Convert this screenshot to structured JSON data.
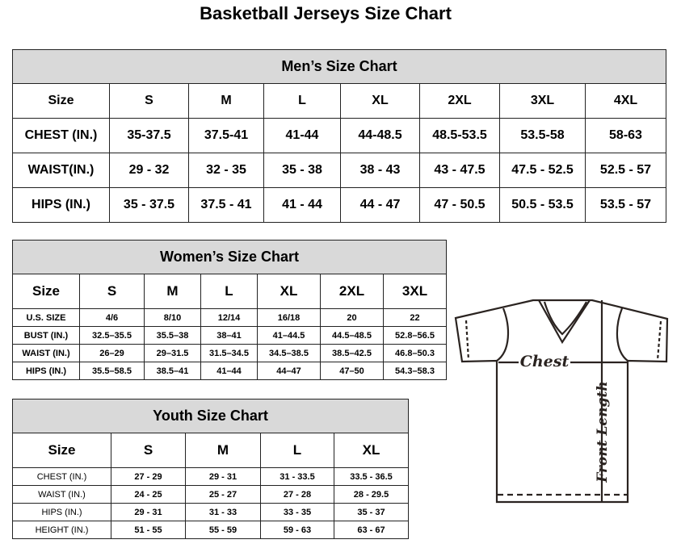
{
  "title": "Basketball Jerseys Size Chart",
  "men": {
    "caption": "Men’s Size Chart",
    "header": [
      "Size",
      "S",
      "M",
      "L",
      "XL",
      "2XL",
      "3XL",
      "4XL"
    ],
    "rows": [
      [
        "CHEST (IN.)",
        "35-37.5",
        "37.5-41",
        "41-44",
        "44-48.5",
        "48.5-53.5",
        "53.5-58",
        "58-63"
      ],
      [
        "WAIST(IN.)",
        "29 - 32",
        "32 - 35",
        "35 - 38",
        "38 - 43",
        "43 - 47.5",
        "47.5 - 52.5",
        "52.5 - 57"
      ],
      [
        "HIPS (IN.)",
        "35 - 37.5",
        "37.5 - 41",
        "41 - 44",
        "44 - 47",
        "47 - 50.5",
        "50.5 - 53.5",
        "53.5 - 57"
      ]
    ]
  },
  "women": {
    "caption": "Women’s Size Chart",
    "header": [
      "Size",
      "S",
      "M",
      "L",
      "XL",
      "2XL",
      "3XL"
    ],
    "rows": [
      [
        "U.S. SIZE",
        "4/6",
        "8/10",
        "12/14",
        "16/18",
        "20",
        "22"
      ],
      [
        "BUST (IN.)",
        "32.5–35.5",
        "35.5–38",
        "38–41",
        "41–44.5",
        "44.5–48.5",
        "52.8–56.5"
      ],
      [
        "WAIST (IN.)",
        "26–29",
        "29–31.5",
        "31.5–34.5",
        "34.5–38.5",
        "38.5–42.5",
        "46.8–50.3"
      ],
      [
        "HIPS (IN.)",
        "35.5–58.5",
        "38.5–41",
        "41–44",
        "44–47",
        "47–50",
        "54.3–58.3"
      ]
    ]
  },
  "youth": {
    "caption": "Youth Size Chart",
    "header": [
      "Size",
      "S",
      "M",
      "L",
      "XL"
    ],
    "rows": [
      [
        "CHEST (IN.)",
        "27 - 29",
        "29 - 31",
        "31 - 33.5",
        "33.5 - 36.5"
      ],
      [
        "WAIST (IN.)",
        "24 - 25",
        "25 - 27",
        "27 - 28",
        "28 - 29.5"
      ],
      [
        "HIPS (IN.)",
        "29 - 31",
        "31 - 33",
        "33 - 35",
        "35 - 37"
      ],
      [
        "HEIGHT (IN.)",
        "51 - 55",
        "55 - 59",
        "59 - 63",
        "63 - 67"
      ]
    ]
  },
  "diagram": {
    "chest_label": "Chest",
    "length_label": "Front Length"
  }
}
